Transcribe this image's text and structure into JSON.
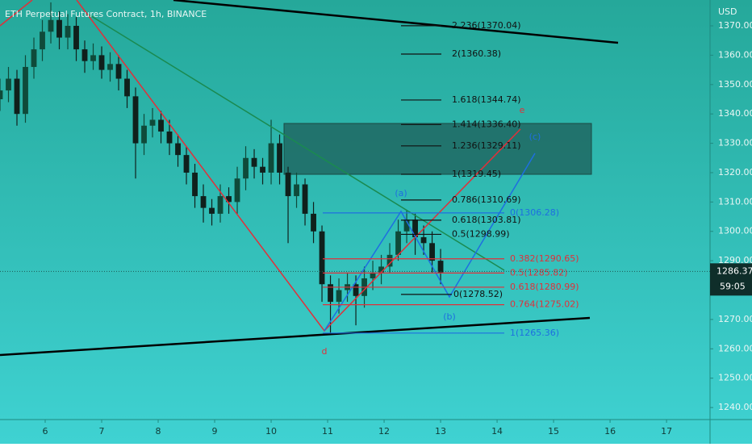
{
  "chart_data": {
    "type": "candlestick",
    "title": "ETH Perpetual Futures Contract, 1h, BINANCE",
    "y_axis_label": "USD",
    "x": [
      5.2,
      5.35,
      5.5,
      5.65,
      5.8,
      5.95,
      6.1,
      6.25,
      6.4,
      6.55,
      6.7,
      6.85,
      7.0,
      7.15,
      7.3,
      7.45,
      7.6,
      7.75,
      7.9,
      8.05,
      8.2,
      8.35,
      8.5,
      8.65,
      8.8,
      8.95,
      9.1,
      9.25,
      9.4,
      9.55,
      9.7,
      9.85,
      10.0,
      10.15,
      10.3,
      10.45,
      10.6,
      10.75,
      10.9,
      11.05,
      11.2,
      11.35,
      11.5,
      11.65,
      11.8,
      11.95,
      12.1,
      12.25,
      12.4,
      12.55,
      12.7,
      12.85,
      13.0
    ],
    "open": [
      1345,
      1348,
      1352,
      1340,
      1356,
      1362,
      1368,
      1372,
      1366,
      1370,
      1362,
      1358,
      1360,
      1355,
      1357,
      1352,
      1346,
      1330,
      1336,
      1338,
      1334,
      1330,
      1326,
      1320,
      1312,
      1308,
      1306,
      1312,
      1310,
      1318,
      1325,
      1322,
      1320,
      1330,
      1320,
      1312,
      1316,
      1306,
      1300,
      1282,
      1276,
      1280,
      1282,
      1278,
      1284,
      1286,
      1288,
      1292,
      1300,
      1304,
      1298,
      1296,
      1290
    ],
    "high": [
      1352,
      1356,
      1355,
      1360,
      1366,
      1372,
      1378,
      1375,
      1374,
      1373,
      1365,
      1364,
      1363,
      1361,
      1360,
      1355,
      1349,
      1340,
      1342,
      1341,
      1338,
      1333,
      1329,
      1323,
      1316,
      1311,
      1316,
      1315,
      1322,
      1329,
      1328,
      1325,
      1338,
      1333,
      1322,
      1320,
      1318,
      1310,
      1302,
      1285,
      1284,
      1286,
      1285,
      1288,
      1290,
      1292,
      1296,
      1304,
      1307,
      1306,
      1302,
      1300,
      1294
    ],
    "low": [
      1341,
      1344,
      1336,
      1337,
      1352,
      1358,
      1364,
      1362,
      1362,
      1358,
      1354,
      1355,
      1352,
      1351,
      1348,
      1342,
      1318,
      1326,
      1332,
      1330,
      1326,
      1322,
      1316,
      1308,
      1303,
      1302,
      1303,
      1306,
      1306,
      1314,
      1318,
      1316,
      1316,
      1316,
      1296,
      1308,
      1302,
      1296,
      1276,
      1265,
      1272,
      1276,
      1268,
      1274,
      1280,
      1282,
      1286,
      1290,
      1296,
      1292,
      1292,
      1286,
      1282
    ],
    "close": [
      1348,
      1352,
      1340,
      1356,
      1362,
      1368,
      1372,
      1366,
      1370,
      1362,
      1358,
      1360,
      1355,
      1357,
      1352,
      1346,
      1330,
      1336,
      1338,
      1334,
      1330,
      1326,
      1320,
      1312,
      1308,
      1306,
      1312,
      1310,
      1318,
      1325,
      1322,
      1320,
      1330,
      1320,
      1312,
      1316,
      1306,
      1300,
      1282,
      1276,
      1280,
      1282,
      1278,
      1284,
      1286,
      1288,
      1292,
      1300,
      1304,
      1298,
      1296,
      1290,
      1286
    ],
    "color_up": "#0f4a3a",
    "color_down": "#10201c",
    "xlim": [
      5.2,
      17.77
    ],
    "xticks": [
      6,
      7,
      8,
      9,
      10,
      11,
      12,
      13,
      14,
      15,
      16,
      17
    ],
    "ylim": [
      1235.9,
      1378.8
    ],
    "yticks": [
      {
        "value": 1240,
        "label": "1240.00"
      },
      {
        "value": 1250,
        "label": "1250.00"
      },
      {
        "value": 1260,
        "label": "1260.00"
      },
      {
        "value": 1270,
        "label": "1270.00"
      },
      {
        "value": 1280,
        "label": "1280.00"
      },
      {
        "value": 1290,
        "label": "1290.00"
      },
      {
        "value": 1300,
        "label": "1300.00"
      },
      {
        "value": 1310,
        "label": "1310.00"
      },
      {
        "value": 1320,
        "label": "1320.00"
      },
      {
        "value": 1330,
        "label": "1330.00"
      },
      {
        "value": 1340,
        "label": "1340.00"
      },
      {
        "value": 1350,
        "label": "1350.00"
      },
      {
        "value": 1360,
        "label": "1360.00"
      },
      {
        "value": 1370,
        "label": "1370.00"
      }
    ],
    "last_price": 1286.37,
    "countdown": "59:05",
    "fib_groups": [
      {
        "color": "#111111",
        "levels": [
          {
            "label": "2.236(1370.04)",
            "value": 1370.04
          },
          {
            "label": "2(1360.38)",
            "value": 1360.38
          },
          {
            "label": "1.618(1344.74)",
            "value": 1344.74
          },
          {
            "label": "1.414(1336.40)",
            "value": 1336.4
          },
          {
            "label": "1.236(1329.11)",
            "value": 1329.11
          },
          {
            "label": "1(1319.45)",
            "value": 1319.45
          },
          {
            "label": "0.786(1310.69)",
            "value": 1310.69
          },
          {
            "label": "0.618(1303.81)",
            "value": 1303.81
          },
          {
            "label": "0.5(1298.99)",
            "value": 1298.99
          },
          {
            "label": "0(1278.52)",
            "value": 1278.52
          }
        ]
      },
      {
        "color": "#1e6fe0",
        "levels": [
          {
            "label": "0(1306.28)",
            "value": 1306.28
          },
          {
            "label": "1(1265.36)",
            "value": 1265.36
          }
        ]
      },
      {
        "color": "#e0303a",
        "levels": [
          {
            "label": "0.382(1290.65)",
            "value": 1290.65
          },
          {
            "label": "0.5(1285.82)",
            "value": 1285.82
          },
          {
            "label": "0.618(1280.99)",
            "value": 1280.99
          },
          {
            "label": "0.764(1275.02)",
            "value": 1275.02
          }
        ]
      }
    ],
    "wave_labels": [
      {
        "text": "e",
        "color": "#e0303a"
      },
      {
        "text": "(c)",
        "color": "#1e6fe0"
      },
      {
        "text": "(a)",
        "color": "#1e6fe0"
      },
      {
        "text": "(b)",
        "color": "#1e6fe0"
      },
      {
        "text": "d",
        "color": "#e0303a"
      }
    ]
  }
}
